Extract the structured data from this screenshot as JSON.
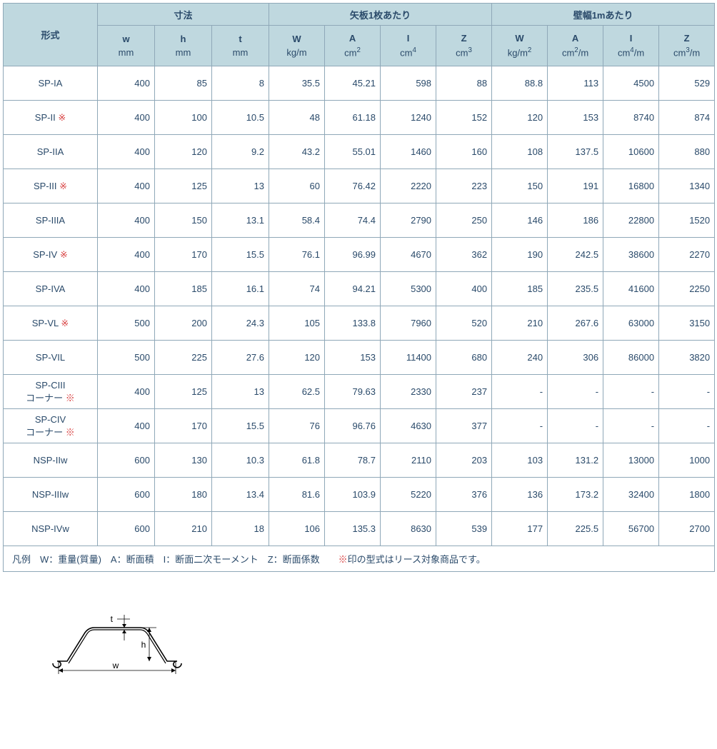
{
  "header": {
    "model": "形式",
    "group_dim": "寸法",
    "group_per_sheet": "矢板1枚あたり",
    "group_per_meter": "壁幅1mあたり",
    "w_sym": "w",
    "w_unit": "mm",
    "h_sym": "h",
    "h_unit": "mm",
    "t_sym": "t",
    "t_unit": "mm",
    "W1_sym": "W",
    "W1_unit": "kg/m",
    "A1_sym": "A",
    "A1_unit_html": "cm<sup>2</sup>",
    "I1_sym": "I",
    "I1_unit_html": "cm<sup>4</sup>",
    "Z1_sym": "Z",
    "Z1_unit_html": "cm<sup>3</sup>",
    "W2_sym": "W",
    "W2_unit_html": "kg/m<sup>2</sup>",
    "A2_sym": "A",
    "A2_unit_html": "cm<sup>2</sup>/m",
    "I2_sym": "I",
    "I2_unit_html": "cm<sup>4</sup>/m",
    "Z2_sym": "Z",
    "Z2_unit_html": "cm<sup>3</sup>/m"
  },
  "rows": [
    {
      "model": "SP-IA",
      "mark": false,
      "twoline": false,
      "w": "400",
      "h": "85",
      "t": "8",
      "W1": "35.5",
      "A1": "45.21",
      "I1": "598",
      "Z1": "88",
      "W2": "88.8",
      "A2": "113",
      "I2": "4500",
      "Z2": "529"
    },
    {
      "model": "SP-II",
      "mark": true,
      "twoline": false,
      "w": "400",
      "h": "100",
      "t": "10.5",
      "W1": "48",
      "A1": "61.18",
      "I1": "1240",
      "Z1": "152",
      "W2": "120",
      "A2": "153",
      "I2": "8740",
      "Z2": "874"
    },
    {
      "model": "SP-IIA",
      "mark": false,
      "twoline": false,
      "w": "400",
      "h": "120",
      "t": "9.2",
      "W1": "43.2",
      "A1": "55.01",
      "I1": "1460",
      "Z1": "160",
      "W2": "108",
      "A2": "137.5",
      "I2": "10600",
      "Z2": "880"
    },
    {
      "model": "SP-III",
      "mark": true,
      "twoline": false,
      "w": "400",
      "h": "125",
      "t": "13",
      "W1": "60",
      "A1": "76.42",
      "I1": "2220",
      "Z1": "223",
      "W2": "150",
      "A2": "191",
      "I2": "16800",
      "Z2": "1340"
    },
    {
      "model": "SP-IIIA",
      "mark": false,
      "twoline": false,
      "w": "400",
      "h": "150",
      "t": "13.1",
      "W1": "58.4",
      "A1": "74.4",
      "I1": "2790",
      "Z1": "250",
      "W2": "146",
      "A2": "186",
      "I2": "22800",
      "Z2": "1520"
    },
    {
      "model": "SP-IV",
      "mark": true,
      "twoline": false,
      "w": "400",
      "h": "170",
      "t": "15.5",
      "W1": "76.1",
      "A1": "96.99",
      "I1": "4670",
      "Z1": "362",
      "W2": "190",
      "A2": "242.5",
      "I2": "38600",
      "Z2": "2270"
    },
    {
      "model": "SP-IVA",
      "mark": false,
      "twoline": false,
      "w": "400",
      "h": "185",
      "t": "16.1",
      "W1": "74",
      "A1": "94.21",
      "I1": "5300",
      "Z1": "400",
      "W2": "185",
      "A2": "235.5",
      "I2": "41600",
      "Z2": "2250"
    },
    {
      "model": "SP-VL",
      "mark": true,
      "twoline": false,
      "w": "500",
      "h": "200",
      "t": "24.3",
      "W1": "105",
      "A1": "133.8",
      "I1": "7960",
      "Z1": "520",
      "W2": "210",
      "A2": "267.6",
      "I2": "63000",
      "Z2": "3150"
    },
    {
      "model": "SP-VIL",
      "mark": false,
      "twoline": false,
      "w": "500",
      "h": "225",
      "t": "27.6",
      "W1": "120",
      "A1": "153",
      "I1": "11400",
      "Z1": "680",
      "W2": "240",
      "A2": "306",
      "I2": "86000",
      "Z2": "3820"
    },
    {
      "model": "SP-CIII",
      "model2": "コーナー",
      "mark": true,
      "twoline": true,
      "w": "400",
      "h": "125",
      "t": "13",
      "W1": "62.5",
      "A1": "79.63",
      "I1": "2330",
      "Z1": "237",
      "W2": "-",
      "A2": "-",
      "I2": "-",
      "Z2": "-"
    },
    {
      "model": "SP-CIV",
      "model2": "コーナー",
      "mark": true,
      "twoline": true,
      "w": "400",
      "h": "170",
      "t": "15.5",
      "W1": "76",
      "A1": "96.76",
      "I1": "4630",
      "Z1": "377",
      "W2": "-",
      "A2": "-",
      "I2": "-",
      "Z2": "-"
    },
    {
      "model": "NSP-IIw",
      "mark": false,
      "twoline": false,
      "w": "600",
      "h": "130",
      "t": "10.3",
      "W1": "61.8",
      "A1": "78.7",
      "I1": "2110",
      "Z1": "203",
      "W2": "103",
      "A2": "131.2",
      "I2": "13000",
      "Z2": "1000"
    },
    {
      "model": "NSP-IIIw",
      "mark": false,
      "twoline": false,
      "w": "600",
      "h": "180",
      "t": "13.4",
      "W1": "81.6",
      "A1": "103.9",
      "I1": "5220",
      "Z1": "376",
      "W2": "136",
      "A2": "173.2",
      "I2": "32400",
      "Z2": "1800"
    },
    {
      "model": "NSP-IVw",
      "mark": false,
      "twoline": false,
      "w": "600",
      "h": "210",
      "t": "18",
      "W1": "106",
      "A1": "135.3",
      "I1": "8630",
      "Z1": "539",
      "W2": "177",
      "A2": "225.5",
      "I2": "56700",
      "Z2": "2700"
    }
  ],
  "legend": {
    "prefix": "凡例　W：重量(質量)　A：断面積　I：断面二次モーメント　Z：断面係数　　",
    "mark_symbol": "※",
    "mark_text": "印の型式はリース対象商品です。"
  },
  "diagram": {
    "labels": {
      "w": "w",
      "h": "h",
      "t": "t"
    },
    "colors": {
      "stroke": "#000000",
      "dim": "#000000"
    }
  },
  "col_widths": [
    "132",
    "80",
    "80",
    "80",
    "78",
    "78",
    "78",
    "78",
    "78",
    "78",
    "78",
    "78"
  ]
}
